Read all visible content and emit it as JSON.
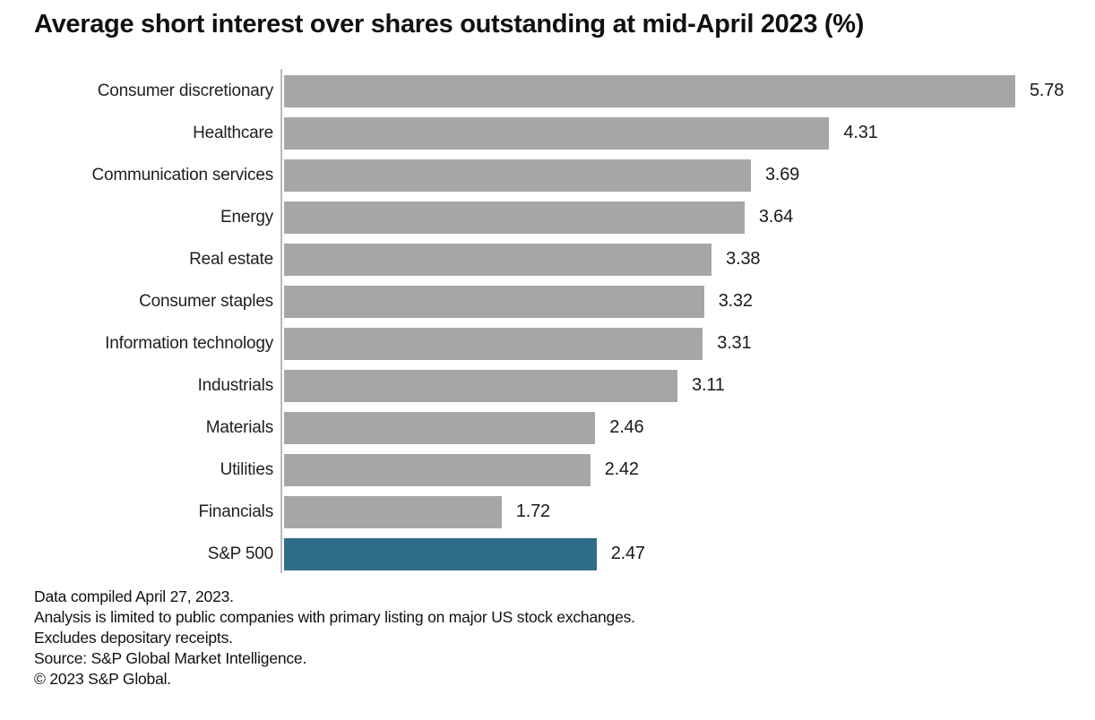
{
  "title": "Average short interest over shares outstanding at mid-April 2023 (%)",
  "chart_data": {
    "type": "bar",
    "orientation": "horizontal",
    "title": "Average short interest over shares outstanding at mid-April 2023 (%)",
    "categories": [
      "Consumer discretionary",
      "Healthcare",
      "Communication services",
      "Energy",
      "Real estate",
      "Consumer staples",
      "Information technology",
      "Industrials",
      "Materials",
      "Utilities",
      "Financials",
      "S&P 500"
    ],
    "values": [
      5.78,
      4.31,
      3.69,
      3.64,
      3.38,
      3.32,
      3.31,
      3.11,
      2.46,
      2.42,
      1.72,
      2.47
    ],
    "value_labels": [
      "5.78",
      "4.31",
      "3.69",
      "3.64",
      "3.38",
      "3.32",
      "3.31",
      "3.11",
      "2.46",
      "2.42",
      "1.72",
      "2.47"
    ],
    "highlight_category": "S&P 500",
    "bar_color": "#a6a6a6",
    "highlight_color": "#2f6c88",
    "axis_line_color": "#b9b9b9",
    "xlim": [
      0,
      5.9
    ],
    "grid": false,
    "legend": "none",
    "value_label_position": "right-of-bar"
  },
  "footnotes": [
    "Data compiled April 27, 2023.",
    "Analysis is limited to public companies with primary listing on major US stock exchanges.",
    "Excludes depositary receipts.",
    "Source: S&P Global Market Intelligence.",
    "© 2023 S&P Global."
  ]
}
